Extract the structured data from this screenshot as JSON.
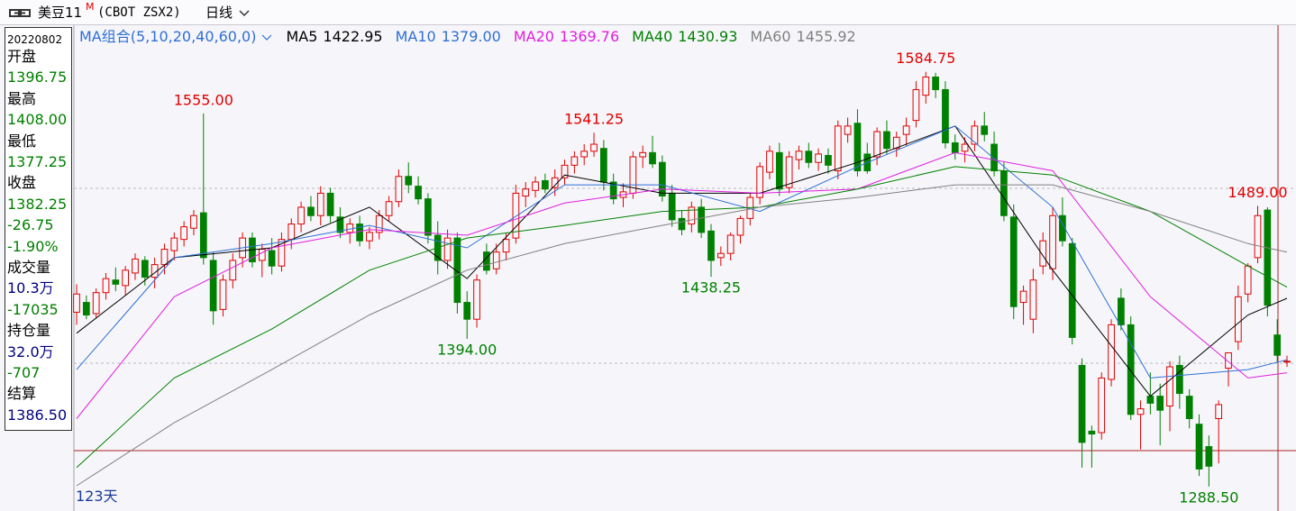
{
  "header": {
    "symbol": "美豆11",
    "badge": "M",
    "code": "(CBOT ZSX2)",
    "period": "日线"
  },
  "info_panel": {
    "date": "20220802",
    "rows": [
      {
        "text": "开盘",
        "color": "#000000"
      },
      {
        "text": "1396.75",
        "color": "#008000"
      },
      {
        "text": "最高",
        "color": "#000000"
      },
      {
        "text": "1408.00",
        "color": "#008000"
      },
      {
        "text": "最低",
        "color": "#000000"
      },
      {
        "text": "1377.25",
        "color": "#008000"
      },
      {
        "text": "收盘",
        "color": "#000000"
      },
      {
        "text": "1382.25",
        "color": "#008000"
      },
      {
        "text": "-26.75",
        "color": "#008000"
      },
      {
        "text": "-1.90%",
        "color": "#008000"
      },
      {
        "text": "成交量",
        "color": "#000000"
      },
      {
        "text": "10.3万",
        "color": "#000080"
      },
      {
        "text": "-17035",
        "color": "#008000"
      },
      {
        "text": "持仓量",
        "color": "#000000"
      },
      {
        "text": "32.0万",
        "color": "#000080"
      },
      {
        "text": "-707",
        "color": "#008000"
      },
      {
        "text": "结算",
        "color": "#000000"
      },
      {
        "text": "1386.50",
        "color": "#000080"
      }
    ]
  },
  "chart_data": {
    "type": "candlestick",
    "indicator": "MA组合(5,10,20,40,60,0)",
    "footer": "123天",
    "up_color": "#e00000",
    "down_color": "#008000",
    "ylim": [
      1271,
      1618
    ],
    "candles": {
      "open": [
        1413,
        1420,
        1412,
        1427,
        1436,
        1432,
        1441,
        1450,
        1438,
        1447,
        1457,
        1465,
        1473,
        1484,
        1450,
        1415,
        1436,
        1452,
        1466,
        1450,
        1457,
        1446,
        1465,
        1476,
        1488,
        1482,
        1498,
        1481,
        1470,
        1476,
        1464,
        1470,
        1482,
        1492,
        1510,
        1503,
        1494,
        1468,
        1450,
        1466,
        1420,
        1408,
        1456,
        1444,
        1456,
        1466,
        1496,
        1500,
        1507,
        1502,
        1509,
        1518,
        1524,
        1528,
        1530,
        1506,
        1495,
        1498,
        1524,
        1527,
        1520,
        1498,
        1480,
        1476,
        1488,
        1471,
        1452,
        1455,
        1468,
        1480,
        1495,
        1513,
        1527,
        1502,
        1522,
        1528,
        1520,
        1525,
        1514,
        1540,
        1548,
        1526,
        1524,
        1542,
        1530,
        1540,
        1550,
        1568,
        1581,
        1572,
        1534,
        1528,
        1533,
        1546,
        1533,
        1514,
        1481,
        1420,
        1408,
        1446,
        1444,
        1482,
        1462,
        1375,
        1328,
        1327,
        1365,
        1423,
        1404,
        1340,
        1353,
        1353,
        1346,
        1375,
        1353,
        1333,
        1317,
        1337,
        1373,
        1392,
        1426,
        1452,
        1486,
        1396.75,
        1378
      ],
      "high": [
        1433,
        1425,
        1430,
        1441,
        1445,
        1446,
        1455,
        1453,
        1452,
        1462,
        1470,
        1478,
        1486,
        1555,
        1456,
        1440,
        1455,
        1470,
        1470,
        1462,
        1466,
        1470,
        1480,
        1492,
        1496,
        1503,
        1502,
        1488,
        1480,
        1482,
        1474,
        1486,
        1496,
        1515,
        1520,
        1510,
        1498,
        1478,
        1472,
        1470,
        1428,
        1440,
        1462,
        1462,
        1470,
        1504,
        1506,
        1510,
        1512,
        1515,
        1522,
        1528,
        1533,
        1541.25,
        1536,
        1512,
        1505,
        1528,
        1532,
        1539,
        1525,
        1504,
        1486,
        1492,
        1494,
        1476,
        1460,
        1470,
        1482,
        1498,
        1520,
        1532,
        1534,
        1528,
        1532,
        1534,
        1530,
        1530,
        1550,
        1552,
        1558,
        1534,
        1545,
        1550,
        1542,
        1552,
        1578,
        1584.75,
        1584,
        1578,
        1540,
        1538,
        1550,
        1556,
        1542,
        1520,
        1490,
        1432,
        1444,
        1470,
        1488,
        1495,
        1466,
        1380,
        1332,
        1370,
        1408,
        1430,
        1410,
        1350,
        1370,
        1362,
        1378,
        1382,
        1358,
        1340,
        1325,
        1350,
        1384,
        1432,
        1448,
        1489,
        1488,
        1408,
        1382
      ],
      "low": [
        1404,
        1408,
        1409,
        1422,
        1428,
        1425,
        1436,
        1432,
        1430,
        1440,
        1450,
        1460,
        1468,
        1447,
        1404,
        1410,
        1430,
        1445,
        1445,
        1438,
        1440,
        1442,
        1458,
        1470,
        1478,
        1475,
        1477,
        1466,
        1462,
        1460,
        1458,
        1465,
        1478,
        1488,
        1498,
        1490,
        1462,
        1440,
        1444,
        1412,
        1394,
        1402,
        1440,
        1440,
        1450,
        1462,
        1488,
        1495,
        1498,
        1496,
        1504,
        1512,
        1518,
        1524,
        1500,
        1490,
        1488,
        1494,
        1516,
        1516,
        1492,
        1474,
        1468,
        1470,
        1466,
        1438.25,
        1446,
        1450,
        1462,
        1475,
        1490,
        1508,
        1496,
        1498,
        1515,
        1516,
        1514,
        1512,
        1508,
        1534,
        1510,
        1512,
        1518,
        1526,
        1524,
        1532,
        1545,
        1562,
        1566,
        1530,
        1522,
        1520,
        1528,
        1535,
        1510,
        1478,
        1408,
        1404,
        1398,
        1440,
        1436,
        1460,
        1390,
        1302,
        1302,
        1322,
        1360,
        1400,
        1336,
        1315,
        1340,
        1318,
        1328,
        1344,
        1330,
        1296,
        1288.5,
        1305,
        1360,
        1386,
        1420,
        1448,
        1410,
        1377.25,
        1374
      ],
      "close": [
        1426,
        1411,
        1427,
        1437,
        1433,
        1443,
        1451,
        1438,
        1447,
        1458,
        1466,
        1474,
        1482,
        1452,
        1414,
        1436,
        1450,
        1466,
        1449,
        1458,
        1446,
        1465,
        1476,
        1488,
        1482,
        1498,
        1482,
        1470,
        1476,
        1464,
        1470,
        1482,
        1492,
        1510,
        1504,
        1494,
        1468,
        1450,
        1466,
        1420,
        1408,
        1436,
        1443,
        1456,
        1465,
        1498,
        1501,
        1506,
        1501,
        1509,
        1518,
        1524,
        1528,
        1533,
        1506,
        1494,
        1499,
        1524,
        1527,
        1519,
        1496,
        1479,
        1472,
        1488,
        1470,
        1450,
        1455,
        1468,
        1480,
        1495,
        1517,
        1528,
        1501,
        1524,
        1528,
        1520,
        1526,
        1518,
        1546,
        1546,
        1514,
        1514,
        1542,
        1530,
        1538,
        1546,
        1572,
        1581,
        1572,
        1534,
        1527,
        1533,
        1546,
        1540,
        1514,
        1482,
        1417,
        1428,
        1436,
        1464,
        1482,
        1464,
        1395,
        1320,
        1326,
        1366,
        1404,
        1404,
        1340,
        1344,
        1348,
        1343,
        1374,
        1355,
        1337,
        1301,
        1303,
        1347,
        1384,
        1424,
        1446,
        1482,
        1418,
        1382.25,
        1378
      ]
    },
    "series": [
      {
        "name": "MA5",
        "color": "#000000",
        "last": {
          "value": 1422.95,
          "label": "1422.95"
        },
        "x": [
          0,
          10,
          20,
          30,
          40,
          50,
          60,
          70,
          80,
          90,
          100,
          110,
          120,
          124
        ],
        "values": [
          1398,
          1452,
          1459,
          1488,
          1437,
          1511,
          1498,
          1498,
          1520,
          1546,
          1443,
          1353,
          1411,
          1422.95
        ]
      },
      {
        "name": "MA10",
        "color": "#2f6fd6",
        "last": {
          "value": 1379,
          "label": "1379.00"
        },
        "x": [
          0,
          10,
          20,
          30,
          40,
          50,
          60,
          70,
          80,
          90,
          100,
          110,
          120,
          124
        ],
        "values": [
          1372,
          1452,
          1462,
          1475,
          1459,
          1504,
          1504,
          1485,
          1517,
          1546,
          1488,
          1366,
          1372,
          1379
        ]
      },
      {
        "name": "MA20",
        "color": "#e01ee0",
        "last": {
          "value": 1369.76,
          "label": "1369.76"
        },
        "x": [
          0,
          10,
          20,
          30,
          40,
          50,
          60,
          70,
          80,
          90,
          100,
          110,
          120,
          124
        ],
        "values": [
          1337,
          1424,
          1459,
          1472,
          1468,
          1491,
          1501,
          1498,
          1501,
          1527,
          1514,
          1424,
          1366,
          1369.76
        ]
      },
      {
        "name": "MA40",
        "color": "#008000",
        "last": {
          "value": 1430.93,
          "label": "1430.93"
        },
        "x": [
          0,
          10,
          20,
          30,
          40,
          50,
          60,
          70,
          80,
          90,
          100,
          110,
          120,
          124
        ],
        "values": [
          1302,
          1366,
          1401,
          1443,
          1466,
          1475,
          1485,
          1488,
          1501,
          1517,
          1511,
          1485,
          1446,
          1430.93
        ]
      },
      {
        "name": "MA60",
        "color": "#808080",
        "last": {
          "value": 1455.92,
          "label": "1455.92"
        },
        "x": [
          0,
          10,
          20,
          30,
          40,
          50,
          60,
          70,
          80,
          90,
          100,
          110,
          120,
          124
        ],
        "values": [
          1289,
          1334,
          1372,
          1411,
          1443,
          1462,
          1475,
          1488,
          1495,
          1504,
          1504,
          1485,
          1462,
          1455.92
        ]
      }
    ],
    "annotations": [
      {
        "value": 1555,
        "label": "1555.00"
      },
      {
        "value": 1394,
        "label": "1394.00"
      },
      {
        "value": 1541.25,
        "label": "1541.25"
      },
      {
        "value": 1438.25,
        "label": "1438.25"
      },
      {
        "value": 1584.75,
        "label": "1584.75"
      },
      {
        "value": 1288.5,
        "label": "1288.50"
      },
      {
        "value": 1489,
        "label": "1489.00"
      }
    ]
  }
}
